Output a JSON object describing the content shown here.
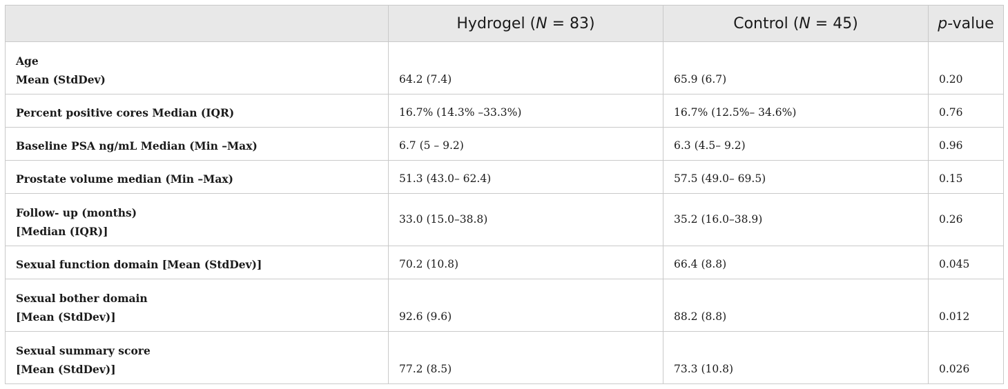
{
  "table": {
    "headers": {
      "col0": "",
      "hydrogel": {
        "label": "Hydrogel (",
        "n_var": "N",
        "n_value": " = 83)"
      },
      "control": {
        "label": "Control (",
        "n_var": "N",
        "n_value": " = 45)"
      },
      "pvalue": {
        "p_var": "p",
        "suffix": "-value"
      }
    },
    "rows": [
      {
        "label_line1": "Age",
        "label_line2": "Mean (StdDev)",
        "hydrogel": "64.2 (7.4)",
        "control": "65.9 (6.7)",
        "pvalue": "0.20"
      },
      {
        "label_line1": "Percent positive cores Median (IQR)",
        "label_line2": "",
        "hydrogel": "16.7% (14.3% –33.3%)",
        "control": "16.7% (12.5%– 34.6%)",
        "pvalue": "0.76"
      },
      {
        "label_line1": "Baseline PSA ng/mL Median (Min –Max)",
        "label_line2": "",
        "hydrogel": "6.7 (5 – 9.2)",
        "control": "6.3 (4.5– 9.2)",
        "pvalue": "0.96"
      },
      {
        "label_line1": "Prostate volume median (Min –Max)",
        "label_line2": "",
        "hydrogel": "51.3 (43.0– 62.4)",
        "control": "57.5 (49.0– 69.5)",
        "pvalue": "0.15"
      },
      {
        "label_line1": "Follow- up (months)",
        "label_line2": "[Median (IQR)]",
        "hydrogel": "33.0 (15.0–38.8)",
        "control": "35.2 (16.0–38.9)",
        "pvalue": "0.26"
      },
      {
        "label_line1": "Sexual function domain [Mean (StdDev)]",
        "label_line2": "",
        "hydrogel": "70.2 (10.8)",
        "control": "66.4 (8.8)",
        "pvalue": "0.045"
      },
      {
        "label_line1": "Sexual bother domain",
        "label_line2": "[Mean (StdDev)]",
        "hydrogel": "92.6 (9.6)",
        "control": "88.2 (8.8)",
        "pvalue": "0.012"
      },
      {
        "label_line1": "Sexual summary score",
        "label_line2": "[Mean (StdDev)]",
        "hydrogel": "77.2 (8.5)",
        "control": "73.3 (10.8)",
        "pvalue": "0.026"
      }
    ]
  }
}
